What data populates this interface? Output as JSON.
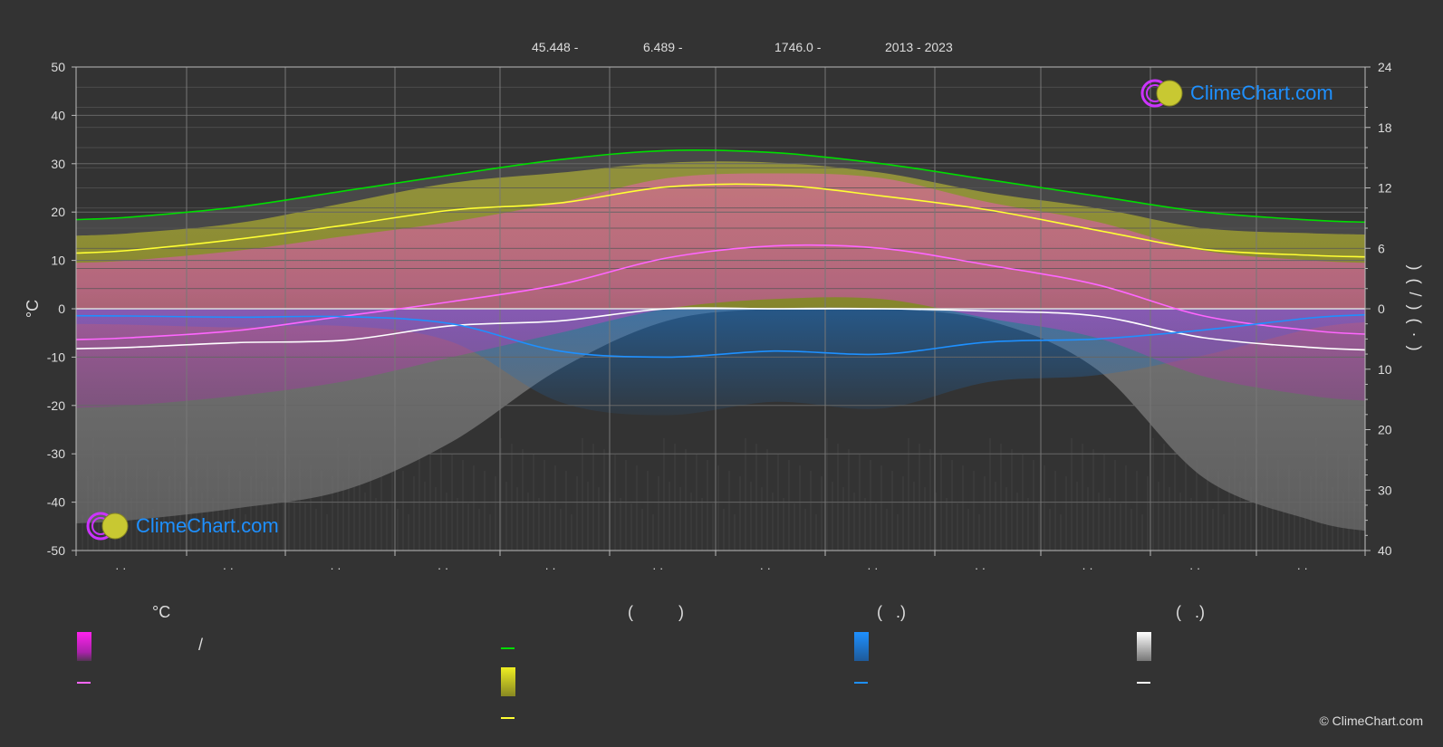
{
  "header": {
    "lat": "45.448 -",
    "lon": "6.489 -",
    "elevation": "1746.0 -",
    "years": "2013 - 2023"
  },
  "logo": {
    "text": "ClimeChart.com"
  },
  "copyright": "© ClimeChart.com",
  "legend": {
    "col1_title": "°C",
    "col1_swatch1_text": "/",
    "col2_title": "(          )",
    "col3_title": "(   .)",
    "col4_title": "(   .)"
  },
  "colors": {
    "background": "#333333",
    "daylight": "#00dd00",
    "sunshine": "#ffff33",
    "temp_max_mean": "#ff66ff",
    "temp_min_mean": "#ffffff",
    "rain": "#1e90ff",
    "snow": "#ffffff",
    "temp_band": "#ff00ff",
    "sunshine_band": "#cccc33",
    "grid": "#666666"
  },
  "chart_data": {
    "type": "line",
    "x_tick_labels": [
      "· ·",
      "· ·",
      "· ·",
      "· ·",
      "· ·",
      "· ·",
      "· ·",
      "· ·",
      "· ·",
      "· ·",
      "· ·",
      "· ·"
    ],
    "y_left": {
      "label": "°C",
      "range": [
        -50,
        50
      ],
      "ticks": [
        50,
        40,
        30,
        20,
        10,
        0,
        -10,
        -20,
        -30,
        -40,
        -50
      ]
    },
    "y_right_top": {
      "range": [
        0,
        24
      ],
      "ticks": [
        24,
        18,
        12,
        6,
        0
      ]
    },
    "y_right_bottom": {
      "range": [
        0,
        40
      ],
      "ticks": [
        10,
        20,
        30,
        40
      ]
    },
    "y_right_label_text": ")   (   /   )  ( · )",
    "grid": true,
    "months": 12,
    "series": [
      {
        "key": "daylight",
        "unit": "hours",
        "axis": "right_top",
        "values": [
          9.1,
          10.1,
          11.7,
          13.3,
          14.8,
          15.7,
          15.5,
          14.4,
          12.8,
          11.2,
          9.6,
          8.8
        ]
      },
      {
        "key": "sunshine",
        "unit": "hours",
        "axis": "right_top",
        "values": [
          5.8,
          6.9,
          8.3,
          9.8,
          10.5,
          12.1,
          12.3,
          11.2,
          9.8,
          7.8,
          5.9,
          5.3
        ]
      },
      {
        "key": "temp_max_mean",
        "unit": "°C",
        "axis": "left",
        "values": [
          -6,
          -4.5,
          -1.5,
          1.5,
          5,
          10.5,
          13,
          12.5,
          9,
          5,
          -1.5,
          -4.5
        ]
      },
      {
        "key": "temp_min_mean",
        "unit": "°C",
        "axis": "left",
        "values": [
          -8,
          -7,
          -6.5,
          -3.5,
          -2.5,
          0,
          0,
          0,
          -0.5,
          -1.5,
          -6,
          -8
        ]
      },
      {
        "key": "rain",
        "unit": "mm",
        "axis": "right_bottom",
        "values": [
          1.2,
          1.4,
          1.3,
          2.5,
          7,
          8,
          7,
          7.5,
          5.5,
          5,
          3.5,
          1.5
        ]
      }
    ],
    "sunshine_band_top_hours": [
      7.5,
      8.5,
      10.5,
      12.5,
      13.5,
      14.5,
      14.5,
      13.5,
      11.5,
      10,
      8,
      7.5
    ],
    "temp_band_range_c": [
      [
        -20,
        10
      ],
      [
        -18,
        12
      ],
      [
        -15,
        15
      ],
      [
        -10,
        18
      ],
      [
        -5,
        22
      ],
      [
        0,
        27
      ],
      [
        2,
        28
      ],
      [
        2,
        27
      ],
      [
        -2,
        22
      ],
      [
        -6,
        18
      ],
      [
        -14,
        12
      ],
      [
        -18,
        10
      ]
    ],
    "snow_band_mm": [
      35,
      33,
      30,
      22,
      10,
      2,
      0,
      0,
      2,
      10,
      28,
      35
    ]
  }
}
